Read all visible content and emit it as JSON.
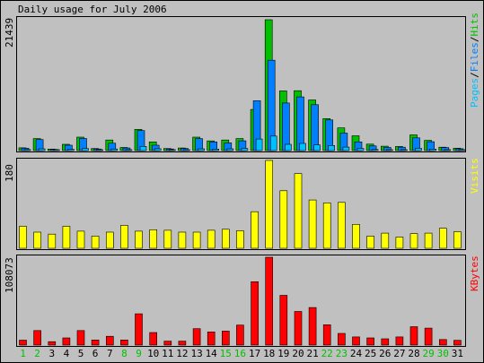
{
  "title": "Daily usage for July 2006",
  "colors": {
    "background": "#c0c0c0",
    "hits": "#00c000",
    "files": "#0080ff",
    "pages": "#00c0ff",
    "visits": "#ffff00",
    "kbytes": "#ff0000",
    "weekend_day": "#00c000",
    "weekday": "#000000"
  },
  "chart_data": [
    {
      "type": "bar",
      "name": "hits-files-pages",
      "y_max_label": "21439",
      "ylim": [
        0,
        21439
      ],
      "legend": [
        {
          "label": "Hits",
          "color": "#00c000"
        },
        {
          "label": "Files",
          "color": "#0080ff"
        },
        {
          "label": "Pages",
          "color": "#00c0ff"
        }
      ],
      "legend_separator": "/",
      "x": [
        1,
        2,
        3,
        4,
        5,
        6,
        7,
        8,
        9,
        10,
        11,
        12,
        13,
        14,
        15,
        16,
        17,
        18,
        19,
        20,
        21,
        22,
        23,
        24,
        25,
        26,
        27,
        28,
        29,
        30,
        31
      ],
      "series": [
        {
          "name": "Hits",
          "values": [
            460,
            1970,
            250,
            1030,
            2200,
            340,
            1740,
            510,
            3480,
            1420,
            340,
            420,
            2200,
            1580,
            1740,
            1970,
            6740,
            21439,
            9780,
            9810,
            8300,
            5240,
            3720,
            2420,
            1050,
            720,
            680,
            2570,
            1670,
            560,
            400
          ]
        },
        {
          "name": "Files",
          "values": [
            380,
            1800,
            190,
            880,
            1980,
            260,
            1200,
            430,
            3280,
            880,
            260,
            350,
            1960,
            1420,
            1260,
            1600,
            8170,
            14800,
            7790,
            8800,
            7520,
            5020,
            2870,
            1430,
            770,
            510,
            560,
            2080,
            1450,
            480,
            310
          ]
        },
        {
          "name": "Pages",
          "values": [
            160,
            300,
            80,
            200,
            340,
            70,
            270,
            110,
            690,
            310,
            70,
            100,
            300,
            250,
            300,
            350,
            1900,
            2380,
            1030,
            1170,
            930,
            840,
            580,
            350,
            170,
            120,
            130,
            380,
            250,
            110,
            80
          ]
        }
      ]
    },
    {
      "type": "bar",
      "name": "visits",
      "y_max_label": "180",
      "ylim": [
        0,
        180
      ],
      "legend": [
        {
          "label": "Visits",
          "color": "#ffff00"
        }
      ],
      "x": [
        1,
        2,
        3,
        4,
        5,
        6,
        7,
        8,
        9,
        10,
        11,
        12,
        13,
        14,
        15,
        16,
        17,
        18,
        19,
        20,
        21,
        22,
        23,
        24,
        25,
        26,
        27,
        28,
        29,
        30,
        31
      ],
      "series": [
        {
          "name": "Visits",
          "values": [
            45,
            33,
            29,
            45,
            35,
            25,
            33,
            47,
            35,
            38,
            37,
            33,
            33,
            37,
            39,
            36,
            75,
            180,
            118,
            153,
            99,
            93,
            94,
            49,
            25,
            31,
            23,
            30,
            31,
            41,
            34
          ]
        }
      ]
    },
    {
      "type": "bar",
      "name": "kbytes",
      "y_max_label": "108073",
      "ylim": [
        0,
        108073
      ],
      "legend": [
        {
          "label": "KBytes",
          "color": "#ff0000"
        }
      ],
      "x": [
        1,
        2,
        3,
        4,
        5,
        6,
        7,
        8,
        9,
        10,
        11,
        12,
        13,
        14,
        15,
        16,
        17,
        18,
        19,
        20,
        21,
        22,
        23,
        24,
        25,
        26,
        27,
        28,
        29,
        30,
        31
      ],
      "series": [
        {
          "name": "KBytes",
          "values": [
            6100,
            17900,
            4200,
            8800,
            17900,
            6300,
            10800,
            6300,
            38500,
            15400,
            4900,
            4900,
            20200,
            16200,
            17200,
            24600,
            78000,
            108073,
            61200,
            41300,
            46200,
            25000,
            14300,
            10000,
            8800,
            7700,
            10000,
            22600,
            20800,
            6800,
            5800
          ]
        }
      ]
    }
  ],
  "x_labels": [
    "1",
    "2",
    "3",
    "4",
    "5",
    "6",
    "7",
    "8",
    "9",
    "10",
    "11",
    "12",
    "13",
    "14",
    "15",
    "16",
    "17",
    "18",
    "19",
    "20",
    "21",
    "22",
    "23",
    "24",
    "25",
    "26",
    "27",
    "28",
    "29",
    "30",
    "31"
  ],
  "weekend_days": [
    1,
    2,
    8,
    9,
    15,
    16,
    22,
    23,
    29,
    30
  ]
}
